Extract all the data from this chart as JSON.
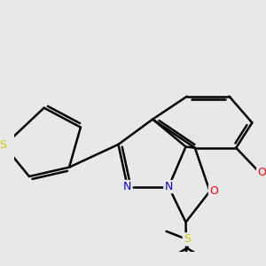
{
  "background_color": "#e8e8e8",
  "bond_color": "#000000",
  "bond_width": 1.8,
  "atom_colors": {
    "N": "#0000ff",
    "O": "#ff0000",
    "S": "#cccc00",
    "C": "#000000"
  },
  "figsize": [
    3.0,
    3.0
  ],
  "dpi": 100,
  "xlim": [
    -3.8,
    3.8
  ],
  "ylim": [
    -4.2,
    3.2
  ]
}
